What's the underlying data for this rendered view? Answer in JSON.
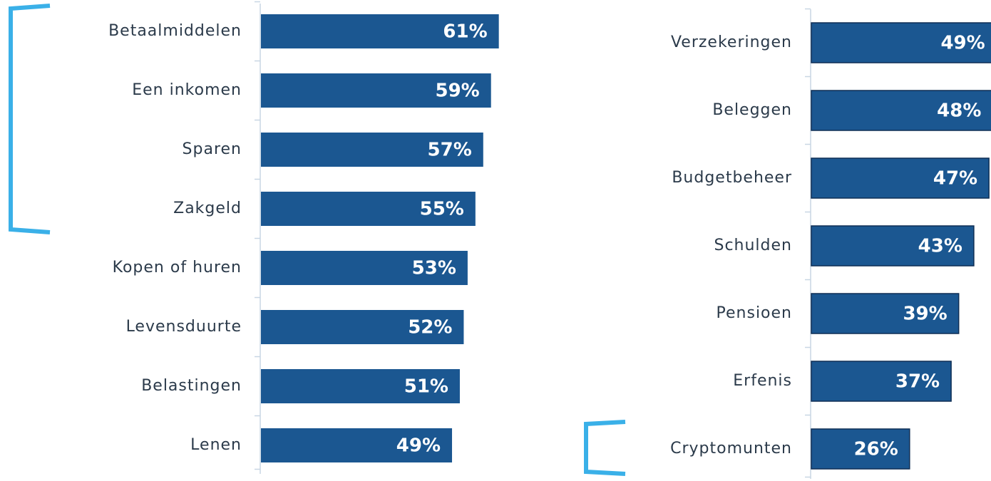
{
  "chart_data": [
    {
      "type": "bar",
      "orientation": "horizontal",
      "color": "#1b5791",
      "categories": [
        "Betaalmiddelen",
        "Een inkomen",
        "Sparen",
        "Zakgeld",
        "Kopen of huren",
        "Levensduurte",
        "Belastingen",
        "Lenen"
      ],
      "values": [
        61,
        59,
        57,
        55,
        53,
        52,
        51,
        49
      ],
      "value_labels": [
        "61%",
        "59%",
        "57%",
        "55%",
        "53%",
        "52%",
        "51%",
        "49%"
      ]
    },
    {
      "type": "bar",
      "orientation": "horizontal",
      "color": "#1b5791",
      "categories": [
        "Verzekeringen",
        "Beleggen",
        "Budgetbeheer",
        "Schulden",
        "Pensioen",
        "Erfenis",
        "Cryptomunten"
      ],
      "values": [
        49,
        48,
        47,
        43,
        39,
        37,
        26
      ],
      "value_labels": [
        "49%",
        "48%",
        "47%",
        "43%",
        "39%",
        "37%",
        "26%"
      ]
    }
  ]
}
